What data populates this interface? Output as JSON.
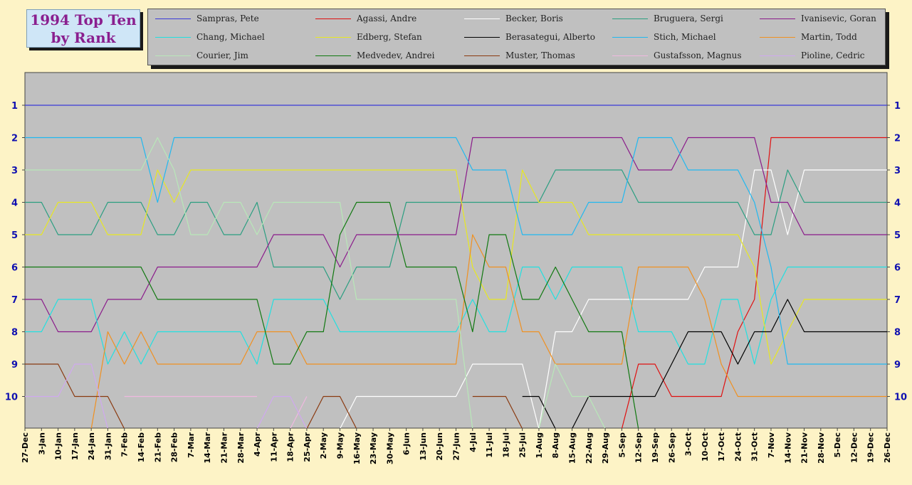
{
  "title_lines": [
    "1994 Top Ten",
    "by Rank"
  ],
  "chart_data": {
    "type": "line",
    "title": "1994 Top Ten by Rank",
    "ylim": [
      1,
      10
    ],
    "y_ticks": [
      "1",
      "2",
      "3",
      "4",
      "5",
      "6",
      "7",
      "8",
      "9",
      "10"
    ],
    "y_inverted": true,
    "grid": false,
    "legend_position": "top",
    "x_label_format": "d-MMM",
    "categories": [
      "27-Dec",
      "3-Jan",
      "10-Jan",
      "17-Jan",
      "24-Jan",
      "31-Jan",
      "7-Feb",
      "14-Feb",
      "21-Feb",
      "28-Feb",
      "7-Mar",
      "14-Mar",
      "21-Mar",
      "28-Mar",
      "4-Apr",
      "11-Apr",
      "18-Apr",
      "25-Apr",
      "2-May",
      "9-May",
      "16-May",
      "23-May",
      "30-May",
      "6-Jun",
      "13-Jun",
      "20-Jun",
      "27-Jun",
      "4-Jul",
      "11-Jul",
      "18-Jul",
      "25-Jul",
      "1-Aug",
      "8-Aug",
      "15-Aug",
      "22-Aug",
      "29-Aug",
      "5-Sep",
      "12-Sep",
      "19-Sep",
      "26-Sep",
      "3-Oct",
      "10-Oct",
      "17-Oct",
      "24-Oct",
      "31-Oct",
      "7-Nov",
      "14-Nov",
      "21-Nov",
      "28-Nov",
      "5-Dec",
      "12-Dec",
      "19-Dec",
      "26-Dec"
    ],
    "series": [
      {
        "name": "Sampras, Pete",
        "color": "#3a3ad8",
        "values": [
          1,
          1,
          1,
          1,
          1,
          1,
          1,
          1,
          1,
          1,
          1,
          1,
          1,
          1,
          1,
          1,
          1,
          1,
          1,
          1,
          1,
          1,
          1,
          1,
          1,
          1,
          1,
          1,
          1,
          1,
          1,
          1,
          1,
          1,
          1,
          1,
          1,
          1,
          1,
          1,
          1,
          1,
          1,
          1,
          1,
          1,
          1,
          1,
          1,
          1,
          1,
          1,
          1
        ]
      },
      {
        "name": "Agassi, Andre",
        "color": "#e01010",
        "values": [
          null,
          null,
          null,
          null,
          null,
          null,
          null,
          null,
          null,
          null,
          null,
          null,
          null,
          null,
          null,
          null,
          null,
          null,
          null,
          null,
          null,
          null,
          null,
          null,
          null,
          null,
          null,
          null,
          null,
          null,
          null,
          null,
          null,
          null,
          null,
          null,
          11,
          9,
          9,
          10,
          10,
          10,
          10,
          8,
          7,
          2,
          2,
          2,
          2,
          2,
          2,
          2,
          2
        ]
      },
      {
        "name": "Becker, Boris",
        "color": "#ffffff",
        "values": [
          null,
          null,
          null,
          null,
          null,
          null,
          null,
          null,
          null,
          null,
          null,
          null,
          null,
          null,
          null,
          null,
          null,
          null,
          null,
          11,
          10,
          10,
          10,
          10,
          10,
          10,
          10,
          9,
          9,
          9,
          9,
          11,
          8,
          8,
          7,
          7,
          7,
          7,
          7,
          7,
          7,
          6,
          6,
          6,
          3,
          3,
          5,
          3,
          3,
          3,
          3,
          3,
          3
        ]
      },
      {
        "name": "Bruguera, Sergi",
        "color": "#2a9e80",
        "values": [
          4,
          4,
          5,
          5,
          5,
          4,
          4,
          4,
          5,
          5,
          4,
          4,
          5,
          5,
          4,
          6,
          6,
          6,
          6,
          7,
          6,
          6,
          6,
          4,
          4,
          4,
          4,
          4,
          4,
          4,
          4,
          4,
          3,
          3,
          3,
          3,
          3,
          4,
          4,
          4,
          4,
          4,
          4,
          4,
          5,
          5,
          3,
          4,
          4,
          4,
          4,
          4,
          4
        ]
      },
      {
        "name": "Ivanisevic, Goran",
        "color": "#8a1a8a",
        "values": [
          7,
          7,
          8,
          8,
          8,
          7,
          7,
          7,
          6,
          6,
          6,
          6,
          6,
          6,
          6,
          5,
          5,
          5,
          5,
          6,
          5,
          5,
          5,
          5,
          5,
          5,
          5,
          2,
          2,
          2,
          2,
          2,
          2,
          2,
          2,
          2,
          2,
          3,
          3,
          3,
          2,
          2,
          2,
          2,
          2,
          4,
          4,
          5,
          5,
          5,
          5,
          5,
          5
        ]
      },
      {
        "name": "Chang, Michael",
        "color": "#20e0e0",
        "values": [
          8,
          8,
          7,
          7,
          7,
          9,
          8,
          9,
          8,
          8,
          8,
          8,
          8,
          8,
          9,
          7,
          7,
          7,
          7,
          8,
          8,
          8,
          8,
          8,
          8,
          8,
          8,
          7,
          8,
          8,
          6,
          6,
          7,
          6,
          6,
          6,
          6,
          8,
          8,
          8,
          9,
          9,
          7,
          7,
          9,
          7,
          6,
          6,
          6,
          6,
          6,
          6,
          6
        ]
      },
      {
        "name": "Edberg, Stefan",
        "color": "#e8e820",
        "values": [
          5,
          5,
          4,
          4,
          4,
          5,
          5,
          5,
          3,
          4,
          3,
          3,
          3,
          3,
          3,
          3,
          3,
          3,
          3,
          3,
          3,
          3,
          3,
          3,
          3,
          3,
          3,
          6,
          7,
          7,
          3,
          4,
          4,
          4,
          5,
          5,
          5,
          5,
          5,
          5,
          5,
          5,
          5,
          5,
          6,
          9,
          8,
          7,
          7,
          7,
          7,
          7,
          7
        ]
      },
      {
        "name": "Berasategui, Alberto",
        "color": "#000000",
        "values": [
          null,
          null,
          null,
          null,
          null,
          null,
          null,
          null,
          null,
          null,
          null,
          null,
          null,
          null,
          null,
          null,
          null,
          null,
          null,
          null,
          null,
          null,
          null,
          null,
          null,
          null,
          null,
          null,
          null,
          null,
          10,
          10,
          11,
          11,
          10,
          10,
          10,
          10,
          10,
          9,
          8,
          8,
          8,
          9,
          8,
          8,
          7,
          8,
          8,
          8,
          8,
          8,
          8
        ]
      },
      {
        "name": "Stich, Michael",
        "color": "#20b8f0",
        "values": [
          2,
          2,
          2,
          2,
          2,
          2,
          2,
          2,
          4,
          2,
          2,
          2,
          2,
          2,
          2,
          2,
          2,
          2,
          2,
          2,
          2,
          2,
          2,
          2,
          2,
          2,
          2,
          3,
          3,
          3,
          5,
          5,
          5,
          5,
          4,
          4,
          4,
          2,
          2,
          2,
          3,
          3,
          3,
          3,
          4,
          6,
          9,
          9,
          9,
          9,
          9,
          9,
          9
        ]
      },
      {
        "name": "Martin, Todd",
        "color": "#f09020",
        "values": [
          null,
          null,
          null,
          null,
          11,
          8,
          9,
          8,
          9,
          9,
          9,
          9,
          9,
          9,
          8,
          8,
          8,
          9,
          9,
          9,
          9,
          9,
          9,
          9,
          9,
          9,
          9,
          5,
          6,
          6,
          8,
          8,
          9,
          9,
          9,
          9,
          9,
          6,
          6,
          6,
          6,
          7,
          9,
          10,
          10,
          10,
          10,
          10,
          10,
          10,
          10,
          10,
          10
        ]
      },
      {
        "name": "Courier, Jim",
        "color": "#b8e8b8",
        "values": [
          3,
          3,
          3,
          3,
          3,
          3,
          3,
          3,
          2,
          3,
          5,
          5,
          4,
          4,
          5,
          4,
          4,
          4,
          4,
          4,
          7,
          7,
          7,
          7,
          7,
          7,
          7,
          11,
          null,
          null,
          null,
          11,
          9,
          10,
          10,
          11,
          null,
          null,
          null,
          null,
          null,
          null,
          null,
          null,
          null,
          null,
          null,
          null,
          null,
          null,
          null,
          null,
          null
        ]
      },
      {
        "name": "Medvedev, Andrei",
        "color": "#107810",
        "values": [
          6,
          6,
          6,
          6,
          6,
          6,
          6,
          6,
          7,
          7,
          7,
          7,
          7,
          7,
          7,
          9,
          9,
          8,
          8,
          5,
          4,
          4,
          4,
          6,
          6,
          6,
          6,
          8,
          5,
          5,
          7,
          7,
          6,
          7,
          8,
          8,
          8,
          11,
          null,
          null,
          null,
          null,
          null,
          null,
          null,
          null,
          null,
          null,
          null,
          null,
          null,
          null,
          null
        ]
      },
      {
        "name": "Muster, Thomas",
        "color": "#8a3a10",
        "values": [
          9,
          9,
          9,
          10,
          10,
          10,
          11,
          null,
          null,
          null,
          null,
          null,
          null,
          null,
          null,
          null,
          null,
          11,
          10,
          10,
          11,
          null,
          null,
          null,
          null,
          null,
          null,
          10,
          10,
          10,
          11,
          null,
          null,
          null,
          null,
          null,
          null,
          null,
          null,
          null,
          null,
          null,
          null,
          null,
          null,
          null,
          null,
          null,
          null,
          null,
          null,
          null,
          null
        ]
      },
      {
        "name": "Gustafsson, Magnus",
        "color": "#f0b8e0",
        "values": [
          null,
          null,
          null,
          null,
          null,
          null,
          10,
          10,
          10,
          10,
          10,
          10,
          10,
          10,
          10,
          null,
          11,
          10,
          null,
          null,
          null,
          null,
          null,
          null,
          null,
          null,
          null,
          null,
          null,
          null,
          null,
          null,
          null,
          null,
          null,
          null,
          null,
          null,
          null,
          null,
          null,
          null,
          null,
          null,
          null,
          null,
          null,
          null,
          null,
          null,
          null,
          null,
          null
        ]
      },
      {
        "name": "Pioline, Cedric",
        "color": "#d0a8f0",
        "values": [
          10,
          10,
          10,
          9,
          9,
          11,
          null,
          null,
          null,
          null,
          null,
          null,
          null,
          null,
          11,
          10,
          10,
          11,
          null,
          null,
          null,
          null,
          null,
          null,
          null,
          null,
          null,
          null,
          null,
          null,
          null,
          null,
          null,
          null,
          null,
          null,
          null,
          null,
          null,
          null,
          null,
          null,
          null,
          null,
          null,
          null,
          null,
          null,
          null,
          null,
          null,
          null,
          null
        ]
      }
    ]
  }
}
